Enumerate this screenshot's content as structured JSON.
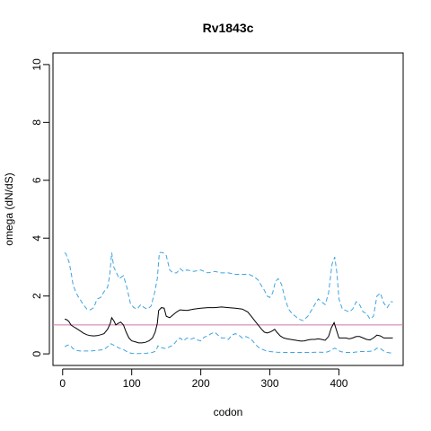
{
  "chart_data": {
    "type": "line",
    "title": "Rv1843c",
    "xlabel": "codon",
    "ylabel": "omega (dN/dS)",
    "xlim": [
      -14,
      493
    ],
    "ylim": [
      -0.4,
      10.4
    ],
    "xticks": [
      0,
      100,
      200,
      300,
      400
    ],
    "yticks": [
      0,
      2,
      4,
      6,
      8,
      10
    ],
    "xtick_labels": [
      "0",
      "100",
      "200",
      "300",
      "400"
    ],
    "ytick_labels": [
      "0",
      "2",
      "4",
      "6",
      "8",
      "10"
    ],
    "grid": false,
    "reference_line": {
      "y": 1.0,
      "color": "#cc79a7"
    },
    "series": [
      {
        "role": "upper",
        "color": "#3fa3e0",
        "dash": true,
        "points": [
          [
            3,
            3.5
          ],
          [
            5,
            3.45
          ],
          [
            7,
            3.3
          ],
          [
            9,
            3.2
          ],
          [
            12,
            2.85
          ],
          [
            15,
            2.4
          ],
          [
            18,
            2.2
          ],
          [
            22,
            2.0
          ],
          [
            26,
            1.85
          ],
          [
            30,
            1.7
          ],
          [
            35,
            1.55
          ],
          [
            40,
            1.52
          ],
          [
            45,
            1.6
          ],
          [
            50,
            1.9
          ],
          [
            55,
            1.95
          ],
          [
            60,
            2.15
          ],
          [
            65,
            2.3
          ],
          [
            68,
            2.7
          ],
          [
            71,
            3.5
          ],
          [
            74,
            3.0
          ],
          [
            77,
            2.85
          ],
          [
            82,
            2.6
          ],
          [
            88,
            2.7
          ],
          [
            93,
            2.3
          ],
          [
            98,
            1.75
          ],
          [
            103,
            1.6
          ],
          [
            108,
            1.55
          ],
          [
            113,
            1.7
          ],
          [
            118,
            1.6
          ],
          [
            123,
            1.55
          ],
          [
            128,
            1.65
          ],
          [
            133,
            2.1
          ],
          [
            137,
            2.6
          ],
          [
            140,
            3.5
          ],
          [
            145,
            3.5
          ],
          [
            150,
            3.4
          ],
          [
            155,
            2.9
          ],
          [
            160,
            2.8
          ],
          [
            165,
            2.8
          ],
          [
            170,
            2.95
          ],
          [
            175,
            2.85
          ],
          [
            180,
            2.9
          ],
          [
            190,
            2.85
          ],
          [
            200,
            2.9
          ],
          [
            210,
            2.8
          ],
          [
            220,
            2.85
          ],
          [
            230,
            2.8
          ],
          [
            240,
            2.8
          ],
          [
            250,
            2.75
          ],
          [
            260,
            2.75
          ],
          [
            270,
            2.75
          ],
          [
            278,
            2.65
          ],
          [
            283,
            2.55
          ],
          [
            288,
            2.35
          ],
          [
            292,
            2.2
          ],
          [
            296,
            2.0
          ],
          [
            300,
            1.95
          ],
          [
            304,
            2.1
          ],
          [
            308,
            2.5
          ],
          [
            312,
            2.6
          ],
          [
            317,
            2.4
          ],
          [
            322,
            1.9
          ],
          [
            327,
            1.55
          ],
          [
            332,
            1.4
          ],
          [
            337,
            1.3
          ],
          [
            342,
            1.2
          ],
          [
            348,
            1.15
          ],
          [
            355,
            1.3
          ],
          [
            360,
            1.5
          ],
          [
            365,
            1.7
          ],
          [
            370,
            1.9
          ],
          [
            375,
            1.8
          ],
          [
            380,
            1.7
          ],
          [
            385,
            2.1
          ],
          [
            390,
            3.1
          ],
          [
            394,
            3.35
          ],
          [
            397,
            2.8
          ],
          [
            400,
            1.9
          ],
          [
            405,
            1.55
          ],
          [
            410,
            1.5
          ],
          [
            415,
            1.45
          ],
          [
            420,
            1.55
          ],
          [
            425,
            1.8
          ],
          [
            430,
            1.7
          ],
          [
            435,
            1.45
          ],
          [
            440,
            1.4
          ],
          [
            445,
            1.2
          ],
          [
            450,
            1.3
          ],
          [
            455,
            2.0
          ],
          [
            460,
            2.1
          ],
          [
            465,
            1.75
          ],
          [
            470,
            1.6
          ],
          [
            475,
            1.8
          ],
          [
            478,
            1.8
          ]
        ]
      },
      {
        "role": "estimate",
        "color": "#000000",
        "dash": false,
        "points": [
          [
            3,
            1.2
          ],
          [
            6,
            1.18
          ],
          [
            9,
            1.12
          ],
          [
            12,
            1.0
          ],
          [
            15,
            0.95
          ],
          [
            20,
            0.88
          ],
          [
            25,
            0.8
          ],
          [
            30,
            0.72
          ],
          [
            35,
            0.66
          ],
          [
            40,
            0.63
          ],
          [
            45,
            0.62
          ],
          [
            50,
            0.63
          ],
          [
            55,
            0.66
          ],
          [
            60,
            0.7
          ],
          [
            65,
            0.85
          ],
          [
            69,
            1.05
          ],
          [
            71,
            1.25
          ],
          [
            74,
            1.15
          ],
          [
            77,
            1.0
          ],
          [
            80,
            1.05
          ],
          [
            84,
            1.1
          ],
          [
            88,
            1.0
          ],
          [
            92,
            0.75
          ],
          [
            96,
            0.55
          ],
          [
            100,
            0.45
          ],
          [
            105,
            0.42
          ],
          [
            110,
            0.38
          ],
          [
            115,
            0.38
          ],
          [
            120,
            0.4
          ],
          [
            125,
            0.45
          ],
          [
            130,
            0.55
          ],
          [
            134,
            0.75
          ],
          [
            137,
            1.05
          ],
          [
            139,
            1.5
          ],
          [
            143,
            1.6
          ],
          [
            147,
            1.58
          ],
          [
            150,
            1.3
          ],
          [
            155,
            1.25
          ],
          [
            160,
            1.35
          ],
          [
            165,
            1.45
          ],
          [
            170,
            1.52
          ],
          [
            180,
            1.5
          ],
          [
            190,
            1.55
          ],
          [
            200,
            1.58
          ],
          [
            210,
            1.6
          ],
          [
            220,
            1.6
          ],
          [
            230,
            1.62
          ],
          [
            240,
            1.6
          ],
          [
            250,
            1.58
          ],
          [
            260,
            1.55
          ],
          [
            268,
            1.45
          ],
          [
            273,
            1.3
          ],
          [
            278,
            1.15
          ],
          [
            283,
            1.0
          ],
          [
            288,
            0.85
          ],
          [
            292,
            0.75
          ],
          [
            296,
            0.72
          ],
          [
            300,
            0.75
          ],
          [
            304,
            0.8
          ],
          [
            307,
            0.85
          ],
          [
            310,
            0.75
          ],
          [
            315,
            0.62
          ],
          [
            320,
            0.55
          ],
          [
            325,
            0.52
          ],
          [
            330,
            0.5
          ],
          [
            335,
            0.48
          ],
          [
            340,
            0.46
          ],
          [
            345,
            0.44
          ],
          [
            350,
            0.45
          ],
          [
            355,
            0.48
          ],
          [
            360,
            0.5
          ],
          [
            365,
            0.5
          ],
          [
            370,
            0.52
          ],
          [
            375,
            0.5
          ],
          [
            380,
            0.47
          ],
          [
            385,
            0.6
          ],
          [
            389,
            0.9
          ],
          [
            393,
            1.08
          ],
          [
            396,
            0.85
          ],
          [
            400,
            0.55
          ],
          [
            405,
            0.55
          ],
          [
            410,
            0.55
          ],
          [
            415,
            0.52
          ],
          [
            420,
            0.55
          ],
          [
            425,
            0.6
          ],
          [
            430,
            0.6
          ],
          [
            435,
            0.55
          ],
          [
            440,
            0.5
          ],
          [
            445,
            0.48
          ],
          [
            450,
            0.55
          ],
          [
            455,
            0.65
          ],
          [
            460,
            0.62
          ],
          [
            465,
            0.55
          ],
          [
            470,
            0.55
          ],
          [
            475,
            0.55
          ],
          [
            478,
            0.55
          ]
        ]
      },
      {
        "role": "lower",
        "color": "#3fa3e0",
        "dash": true,
        "points": [
          [
            3,
            0.25
          ],
          [
            7,
            0.3
          ],
          [
            11,
            0.3
          ],
          [
            15,
            0.18
          ],
          [
            20,
            0.12
          ],
          [
            25,
            0.1
          ],
          [
            30,
            0.1
          ],
          [
            40,
            0.1
          ],
          [
            50,
            0.12
          ],
          [
            60,
            0.15
          ],
          [
            65,
            0.25
          ],
          [
            70,
            0.35
          ],
          [
            74,
            0.3
          ],
          [
            78,
            0.25
          ],
          [
            82,
            0.2
          ],
          [
            88,
            0.15
          ],
          [
            95,
            0.05
          ],
          [
            100,
            0.02
          ],
          [
            110,
            0.01
          ],
          [
            120,
            0.02
          ],
          [
            130,
            0.05
          ],
          [
            135,
            0.1
          ],
          [
            138,
            0.28
          ],
          [
            142,
            0.22
          ],
          [
            146,
            0.2
          ],
          [
            150,
            0.18
          ],
          [
            155,
            0.25
          ],
          [
            160,
            0.3
          ],
          [
            165,
            0.45
          ],
          [
            170,
            0.55
          ],
          [
            175,
            0.45
          ],
          [
            180,
            0.55
          ],
          [
            185,
            0.5
          ],
          [
            190,
            0.55
          ],
          [
            195,
            0.48
          ],
          [
            200,
            0.45
          ],
          [
            205,
            0.58
          ],
          [
            210,
            0.62
          ],
          [
            215,
            0.7
          ],
          [
            220,
            0.75
          ],
          [
            225,
            0.65
          ],
          [
            230,
            0.55
          ],
          [
            235,
            0.55
          ],
          [
            240,
            0.5
          ],
          [
            245,
            0.65
          ],
          [
            250,
            0.7
          ],
          [
            255,
            0.65
          ],
          [
            260,
            0.55
          ],
          [
            265,
            0.6
          ],
          [
            270,
            0.55
          ],
          [
            275,
            0.45
          ],
          [
            280,
            0.3
          ],
          [
            285,
            0.2
          ],
          [
            290,
            0.15
          ],
          [
            295,
            0.1
          ],
          [
            300,
            0.08
          ],
          [
            310,
            0.06
          ],
          [
            320,
            0.05
          ],
          [
            330,
            0.05
          ],
          [
            340,
            0.05
          ],
          [
            350,
            0.05
          ],
          [
            360,
            0.05
          ],
          [
            370,
            0.06
          ],
          [
            380,
            0.05
          ],
          [
            385,
            0.08
          ],
          [
            390,
            0.15
          ],
          [
            394,
            0.2
          ],
          [
            398,
            0.15
          ],
          [
            402,
            0.08
          ],
          [
            410,
            0.05
          ],
          [
            420,
            0.05
          ],
          [
            430,
            0.08
          ],
          [
            440,
            0.08
          ],
          [
            450,
            0.1
          ],
          [
            455,
            0.2
          ],
          [
            460,
            0.18
          ],
          [
            465,
            0.1
          ],
          [
            470,
            0.05
          ],
          [
            475,
            0.03
          ],
          [
            478,
            0.02
          ]
        ]
      }
    ]
  }
}
